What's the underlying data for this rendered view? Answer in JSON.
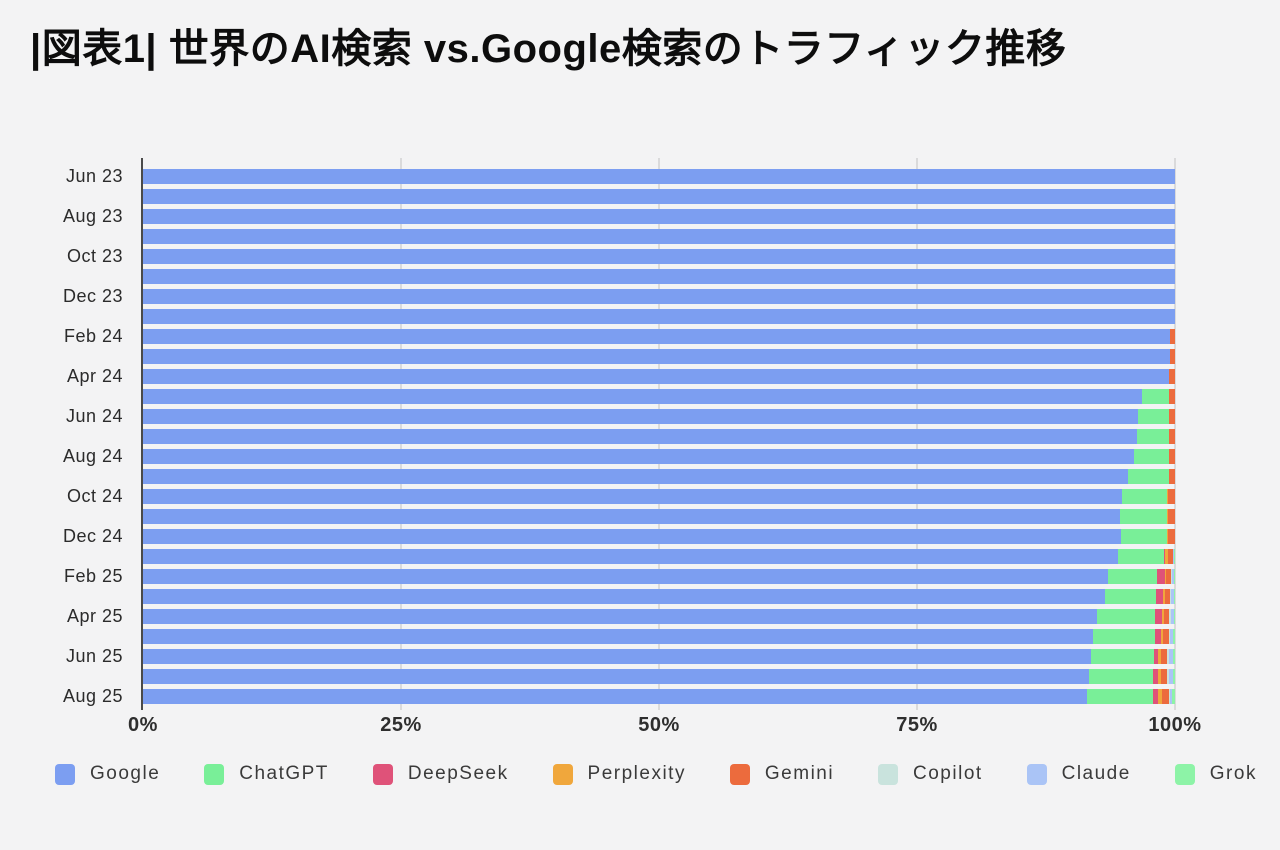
{
  "title": "|図表1| 世界のAI検索 vs.Google検索のトラフィック推移",
  "chart_data": {
    "type": "bar",
    "orientation": "horizontal",
    "stacked": true,
    "title": "世界のAI検索 vs.Google検索のトラフィック推移",
    "xlabel": "",
    "ylabel": "",
    "xlim": [
      0,
      100
    ],
    "grid": true,
    "legend_position": "bottom",
    "label_every": 2,
    "x_tick_values": [
      0,
      25,
      50,
      75,
      100
    ],
    "x_tick_labels": [
      "0%",
      "25%",
      "50%",
      "75%",
      "100%"
    ],
    "categories": [
      "Jun 23",
      "Jul 23",
      "Aug 23",
      "Sep 23",
      "Oct 23",
      "Nov 23",
      "Dec 23",
      "Jan 24",
      "Feb 24",
      "Mar 24",
      "Apr 24",
      "May 24",
      "Jun 24",
      "Jul 24",
      "Aug 24",
      "Sep 24",
      "Oct 24",
      "Nov 24",
      "Dec 24",
      "Jan 25",
      "Feb 25",
      "Mar 25",
      "Apr 25",
      "May 25",
      "Jun 25",
      "Jul 25",
      "Aug 25"
    ],
    "visible_y_tick_labels": [
      "Jun 23",
      "Aug 23",
      "Oct 23",
      "Dec 23",
      "Feb 24",
      "Apr 24",
      "Jun 24",
      "Aug 24",
      "Oct 24",
      "Dec 24",
      "Feb 25",
      "Apr 25",
      "Jun 25",
      "Aug 25"
    ],
    "series": [
      {
        "name": "Google",
        "color": "#7c9ef1",
        "values": [
          100,
          100,
          100,
          100,
          100,
          100,
          100,
          100,
          99.5,
          99.5,
          99.4,
          96.8,
          96.4,
          96.3,
          96.0,
          95.4,
          94.9,
          94.7,
          94.8,
          94.5,
          93.5,
          93.2,
          92.4,
          92.1,
          91.9,
          91.7,
          91.5
        ]
      },
      {
        "name": "ChatGPT",
        "color": "#79ef98",
        "values": [
          0,
          0,
          0,
          0,
          0,
          0,
          0,
          0,
          0,
          0,
          0,
          2.6,
          3.0,
          3.1,
          3.4,
          4.0,
          4.3,
          4.5,
          4.4,
          4.4,
          4.8,
          5.0,
          5.7,
          6.0,
          6.1,
          6.2,
          6.4
        ]
      },
      {
        "name": "DeepSeek",
        "color": "#df5279",
        "values": [
          0,
          0,
          0,
          0,
          0,
          0,
          0,
          0,
          0,
          0,
          0,
          0,
          0,
          0,
          0,
          0,
          0,
          0,
          0,
          0.1,
          0.7,
          0.6,
          0.6,
          0.5,
          0.4,
          0.5,
          0.5
        ]
      },
      {
        "name": "Perplexity",
        "color": "#f0a73c",
        "values": [
          0,
          0,
          0,
          0,
          0,
          0,
          0,
          0,
          0,
          0,
          0,
          0,
          0,
          0,
          0,
          0,
          0.1,
          0.1,
          0.1,
          0.3,
          0.1,
          0.2,
          0.2,
          0.2,
          0.2,
          0.2,
          0.3
        ]
      },
      {
        "name": "Gemini",
        "color": "#ec6b3d",
        "values": [
          0,
          0,
          0,
          0,
          0,
          0,
          0,
          0,
          0.5,
          0.5,
          0.6,
          0.6,
          0.6,
          0.6,
          0.6,
          0.6,
          0.7,
          0.7,
          0.7,
          0.5,
          0.5,
          0.5,
          0.5,
          0.6,
          0.6,
          0.6,
          0.7
        ]
      },
      {
        "name": "Copilot",
        "color": "#c9e3dd",
        "values": [
          0,
          0,
          0,
          0,
          0,
          0,
          0,
          0,
          0,
          0,
          0,
          0,
          0,
          0,
          0,
          0,
          0,
          0,
          0,
          0.05,
          0.1,
          0.1,
          0.2,
          0.1,
          0.2,
          0.2,
          0.1
        ]
      },
      {
        "name": "Claude",
        "color": "#aac4f6",
        "values": [
          0,
          0,
          0,
          0,
          0,
          0,
          0,
          0,
          0,
          0,
          0,
          0,
          0,
          0,
          0,
          0,
          0,
          0,
          0,
          0.1,
          0.2,
          0.3,
          0.3,
          0.3,
          0.4,
          0.4,
          0.2
        ]
      },
      {
        "name": "Grok",
        "color": "#8df3a7",
        "values": [
          0,
          0,
          0,
          0,
          0,
          0,
          0,
          0,
          0,
          0,
          0,
          0,
          0,
          0,
          0,
          0,
          0,
          0,
          0,
          0.05,
          0.1,
          0.1,
          0.1,
          0.2,
          0.2,
          0.2,
          0.3
        ]
      }
    ],
    "colors": {
      "background": "#f3f3f4",
      "axis_line": "#4a4a4a",
      "gridline": "#dadadb",
      "title_text": "#0d0d0d",
      "tick_text": "#2e2e2e",
      "legend_text": "#3a3a3a"
    }
  }
}
